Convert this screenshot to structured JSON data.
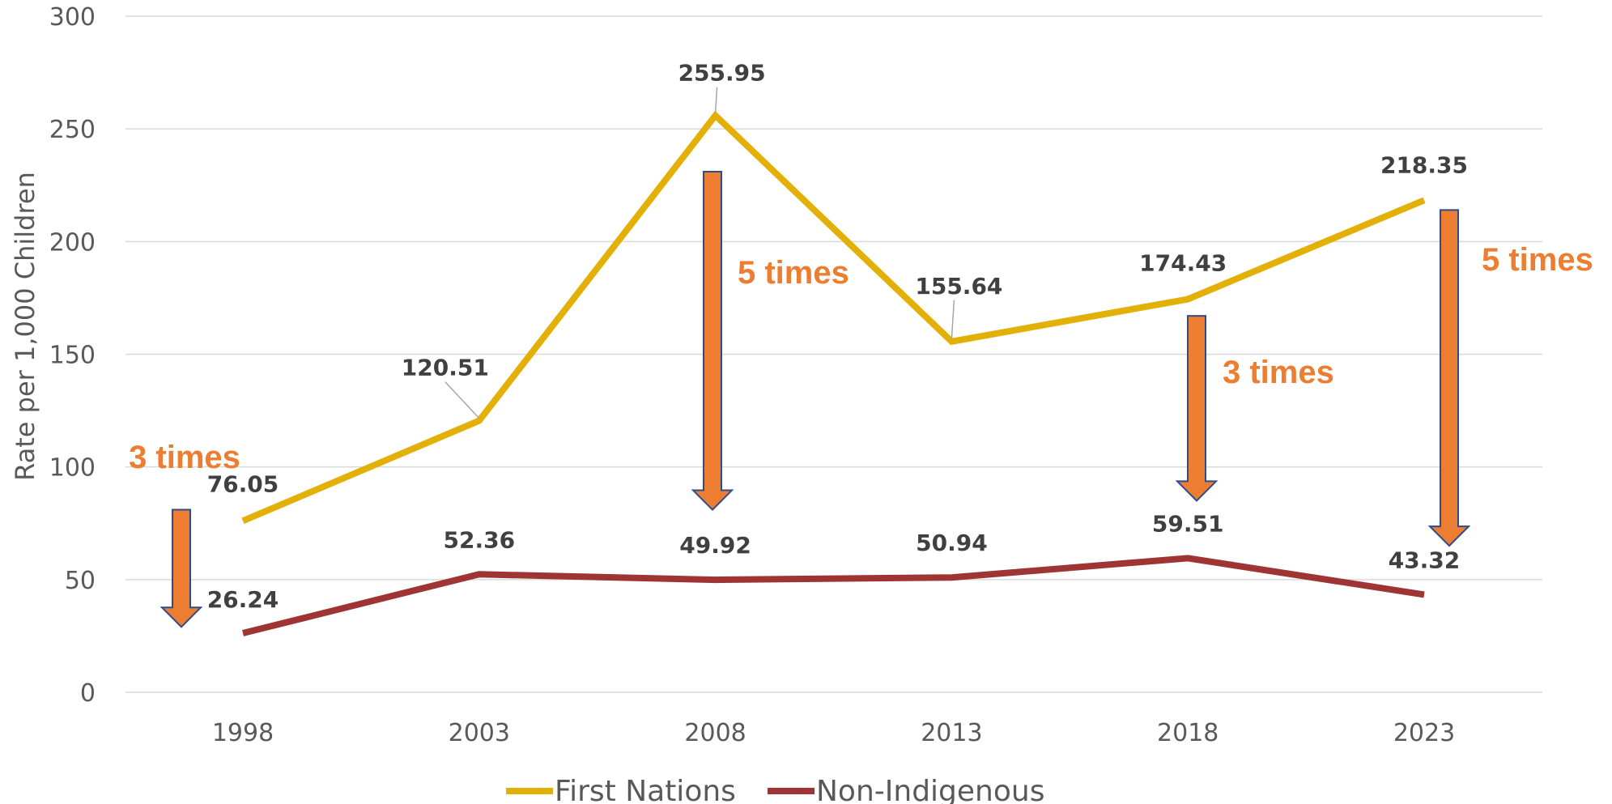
{
  "chart_data": {
    "type": "line",
    "x": [
      "1998",
      "2003",
      "2008",
      "2013",
      "2018",
      "2023"
    ],
    "ylabel": "Rate per 1,000 Children",
    "ylim": [
      0,
      300
    ],
    "yticks": [
      "0",
      "50",
      "100",
      "150",
      "200",
      "250",
      "300"
    ],
    "grid": true,
    "legend_position": "bottom",
    "series": [
      {
        "name": "First Nations",
        "color": "#e2b007",
        "values": [
          76.05,
          120.51,
          255.95,
          155.64,
          174.43,
          218.35
        ],
        "labels": [
          "76.05",
          "120.51",
          "255.95",
          "155.64",
          "174.43",
          "218.35"
        ]
      },
      {
        "name": "Non-Indigenous",
        "color": "#9e3434",
        "values": [
          26.24,
          52.36,
          49.92,
          50.94,
          59.51,
          43.32
        ],
        "labels": [
          "26.24",
          "52.36",
          "49.92",
          "50.94",
          "59.51",
          "43.32"
        ]
      }
    ],
    "annotations": [
      {
        "text": "3 times",
        "category": "1998",
        "from": 81,
        "to": 29
      },
      {
        "text": "5 times",
        "category": "2008",
        "from": 231,
        "to": 81
      },
      {
        "text": "3 times",
        "category": "2018",
        "from": 167,
        "to": 85
      },
      {
        "text": "5 times",
        "category": "2023",
        "from": 214,
        "to": 65
      }
    ],
    "annotation_color": "#ed7d31"
  }
}
